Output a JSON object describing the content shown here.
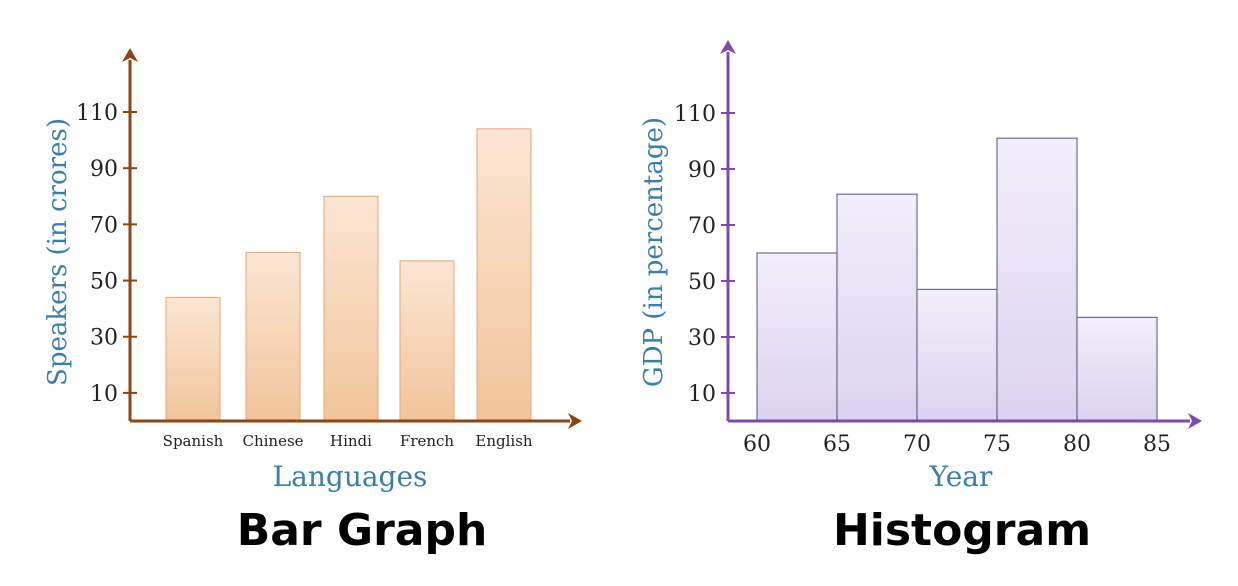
{
  "chart_data": [
    {
      "type": "bar",
      "title": "Bar Graph",
      "xlabel": "Languages",
      "ylabel": "Speakers (in crores)",
      "categories": [
        "Spanish",
        "Chinese",
        "Hindi",
        "French",
        "English"
      ],
      "values": [
        44,
        60,
        80,
        57,
        104
      ],
      "yticks": [
        "10",
        "30",
        "50",
        "70",
        "90",
        "110"
      ],
      "ylim": [
        0,
        120
      ],
      "grid": false,
      "colors": {
        "axis": "#8B4513",
        "bar_top": "#FBE6D3",
        "bar_bottom": "#F2C49A",
        "bar_edge": "#E2A877",
        "label": "#3A7FA8",
        "text": "#222222"
      }
    },
    {
      "type": "bar",
      "subtype": "histogram",
      "title": "Histogram",
      "xlabel": "Year",
      "ylabel": "GDP (in percentage)",
      "bins": [
        {
          "start": 60,
          "end": 65,
          "value": 60
        },
        {
          "start": 65,
          "end": 70,
          "value": 81
        },
        {
          "start": 70,
          "end": 75,
          "value": 47
        },
        {
          "start": 75,
          "end": 80,
          "value": 101
        },
        {
          "start": 80,
          "end": 85,
          "value": 37
        }
      ],
      "xticks": [
        "60",
        "65",
        "70",
        "75",
        "80",
        "85"
      ],
      "yticks": [
        "10",
        "30",
        "50",
        "70",
        "90",
        "110"
      ],
      "ylim": [
        0,
        120
      ],
      "grid": false,
      "colors": {
        "axis": "#7B4BAF",
        "bar_top": "#F2EEFA",
        "bar_bottom": "#DCD2F0",
        "bar_edge": "#6E6E8A",
        "label": "#3A7FA8",
        "text": "#222222"
      }
    }
  ]
}
